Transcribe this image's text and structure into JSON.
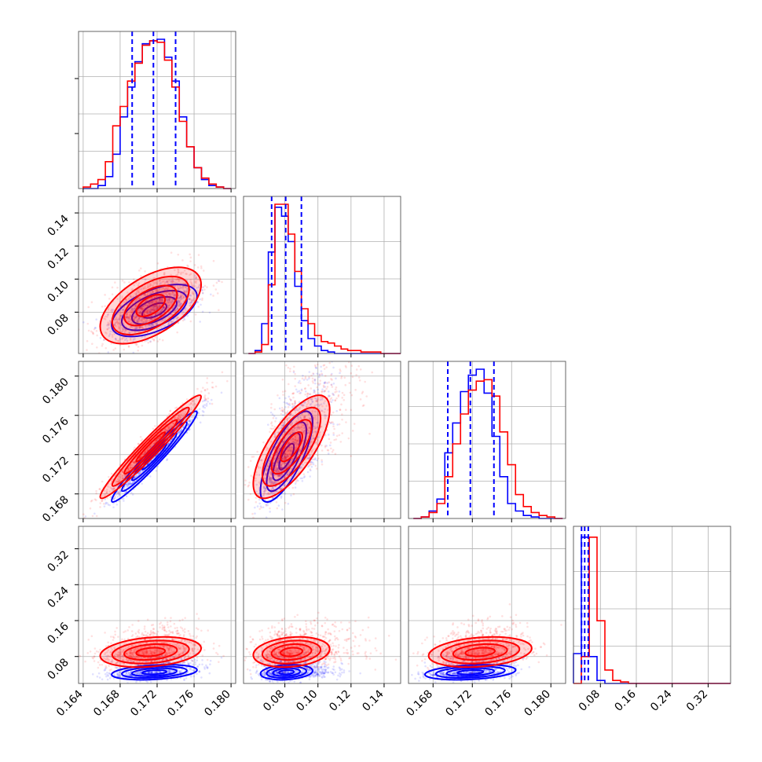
{
  "chart_data": {
    "type": "corner",
    "parameters": [
      "",
      "",
      "",
      ""
    ],
    "axis_ranges": [
      [
        0.1635,
        0.1805
      ],
      [
        0.055,
        0.15
      ],
      [
        0.1655,
        0.1815
      ],
      [
        0.02,
        0.37
      ]
    ],
    "ticks": [
      [
        "0.164",
        "0.168",
        "0.172",
        "0.176",
        "0.180"
      ],
      [
        "0.08",
        "0.10",
        "0.12",
        "0.14"
      ],
      [
        "0.168",
        "0.172",
        "0.176",
        "0.180"
      ],
      [
        "0.08",
        "0.16",
        "0.24",
        "0.32"
      ]
    ],
    "series": [
      {
        "color": "#0000ff"
      },
      {
        "color": "#ff0000"
      }
    ],
    "quantiles_shown_for": "blue",
    "quantile_lines": [
      [
        0.1693,
        0.1716,
        0.174
      ],
      [
        0.072,
        0.0805,
        0.09
      ],
      [
        0.1695,
        0.1718,
        0.1742
      ],
      [
        0.038,
        0.045,
        0.053
      ]
    ],
    "histograms": [
      {
        "edges": [
          0.164,
          0.1648,
          0.1656,
          0.1664,
          0.1672,
          0.168,
          0.1688,
          0.1696,
          0.1704,
          0.1712,
          0.172,
          0.1728,
          0.1736,
          0.1744,
          0.1752,
          0.176,
          0.1768,
          0.1776,
          0.1784,
          0.1792,
          0.18
        ],
        "blue": [
          0.0,
          0.0,
          0.02,
          0.08,
          0.23,
          0.48,
          0.68,
          0.85,
          0.97,
          0.99,
          1.0,
          0.88,
          0.72,
          0.48,
          0.28,
          0.14,
          0.06,
          0.02,
          0.01,
          0.0
        ],
        "red": [
          0.01,
          0.03,
          0.06,
          0.18,
          0.42,
          0.55,
          0.72,
          0.84,
          0.96,
          0.99,
          0.98,
          0.86,
          0.68,
          0.45,
          0.28,
          0.14,
          0.07,
          0.03,
          0.01,
          0.0
        ]
      },
      {
        "edges": [
          0.058,
          0.062,
          0.066,
          0.07,
          0.074,
          0.078,
          0.082,
          0.086,
          0.09,
          0.094,
          0.098,
          0.102,
          0.106,
          0.11,
          0.114,
          0.118,
          0.122,
          0.126,
          0.13,
          0.134,
          0.138,
          0.142,
          0.146,
          0.15
        ],
        "blue": [
          0.0,
          0.02,
          0.2,
          0.68,
          0.98,
          0.92,
          0.75,
          0.45,
          0.22,
          0.1,
          0.05,
          0.02,
          0.01,
          0.0,
          0.0,
          0.0,
          0.0,
          0.0,
          0.0,
          0.0,
          0.0,
          0.0,
          0.0
        ],
        "red": [
          0.0,
          0.01,
          0.06,
          0.46,
          1.0,
          1.0,
          0.8,
          0.55,
          0.3,
          0.2,
          0.12,
          0.08,
          0.07,
          0.05,
          0.03,
          0.02,
          0.02,
          0.01,
          0.01,
          0.01,
          0.0,
          0.0,
          0.0
        ]
      },
      {
        "edges": [
          0.166,
          0.1668,
          0.1676,
          0.1684,
          0.1692,
          0.17,
          0.1708,
          0.1716,
          0.1724,
          0.1732,
          0.174,
          0.1748,
          0.1756,
          0.1764,
          0.1772,
          0.178,
          0.1788,
          0.1796,
          0.1804,
          0.1812
        ],
        "blue": [
          0.0,
          0.01,
          0.05,
          0.13,
          0.44,
          0.64,
          0.85,
          0.96,
          1.0,
          0.84,
          0.55,
          0.28,
          0.1,
          0.05,
          0.02,
          0.01,
          0.0,
          0.0,
          0.0
        ],
        "red": [
          0.0,
          0.01,
          0.04,
          0.1,
          0.28,
          0.5,
          0.7,
          0.86,
          0.92,
          0.93,
          0.82,
          0.58,
          0.36,
          0.16,
          0.08,
          0.04,
          0.02,
          0.01,
          0.0
        ]
      },
      {
        "edges": [
          0.02,
          0.0375,
          0.055,
          0.0725,
          0.09,
          0.1075,
          0.125,
          0.1425,
          0.16,
          0.1775,
          0.195,
          0.2125,
          0.23,
          0.2475,
          0.265,
          0.2825,
          0.3,
          0.3175,
          0.335,
          0.3525,
          0.37
        ],
        "blue": [
          0.2,
          0.98,
          0.18,
          0.02,
          0.0,
          0.0,
          0.0,
          0.0,
          0.0,
          0.0,
          0.0,
          0.0,
          0.0,
          0.0,
          0.0,
          0.0,
          0.0,
          0.0,
          0.0,
          0.0
        ],
        "red": [
          0.0,
          0.18,
          0.98,
          0.42,
          0.09,
          0.02,
          0.01,
          0.0,
          0.0,
          0.0,
          0.0,
          0.0,
          0.0,
          0.0,
          0.0,
          0.0,
          0.0,
          0.0,
          0.0,
          0.0
        ]
      }
    ],
    "correlations": {
      "blue": [
        [
          1,
          0.55,
          0.97,
          0.3
        ],
        [
          0.55,
          1,
          0.75,
          0.2
        ],
        [
          0.97,
          0.75,
          1,
          0.3
        ],
        [
          0.3,
          0.2,
          0.3,
          1
        ]
      ],
      "red": [
        [
          1,
          0.55,
          0.97,
          0.25
        ],
        [
          0.55,
          1,
          0.72,
          0.2
        ],
        [
          0.97,
          0.72,
          1,
          0.25
        ],
        [
          0.25,
          0.2,
          0.25,
          1
        ]
      ]
    },
    "moments": {
      "blue": {
        "mean": [
          0.1717,
          0.081,
          0.1718,
          0.045
        ],
        "sd": [
          0.0022,
          0.0075,
          0.0022,
          0.008
        ]
      },
      "red": {
        "mean": [
          0.1713,
          0.084,
          0.1728,
          0.09
        ],
        "sd": [
          0.0026,
          0.011,
          0.0025,
          0.016
        ]
      }
    },
    "grid": true
  }
}
